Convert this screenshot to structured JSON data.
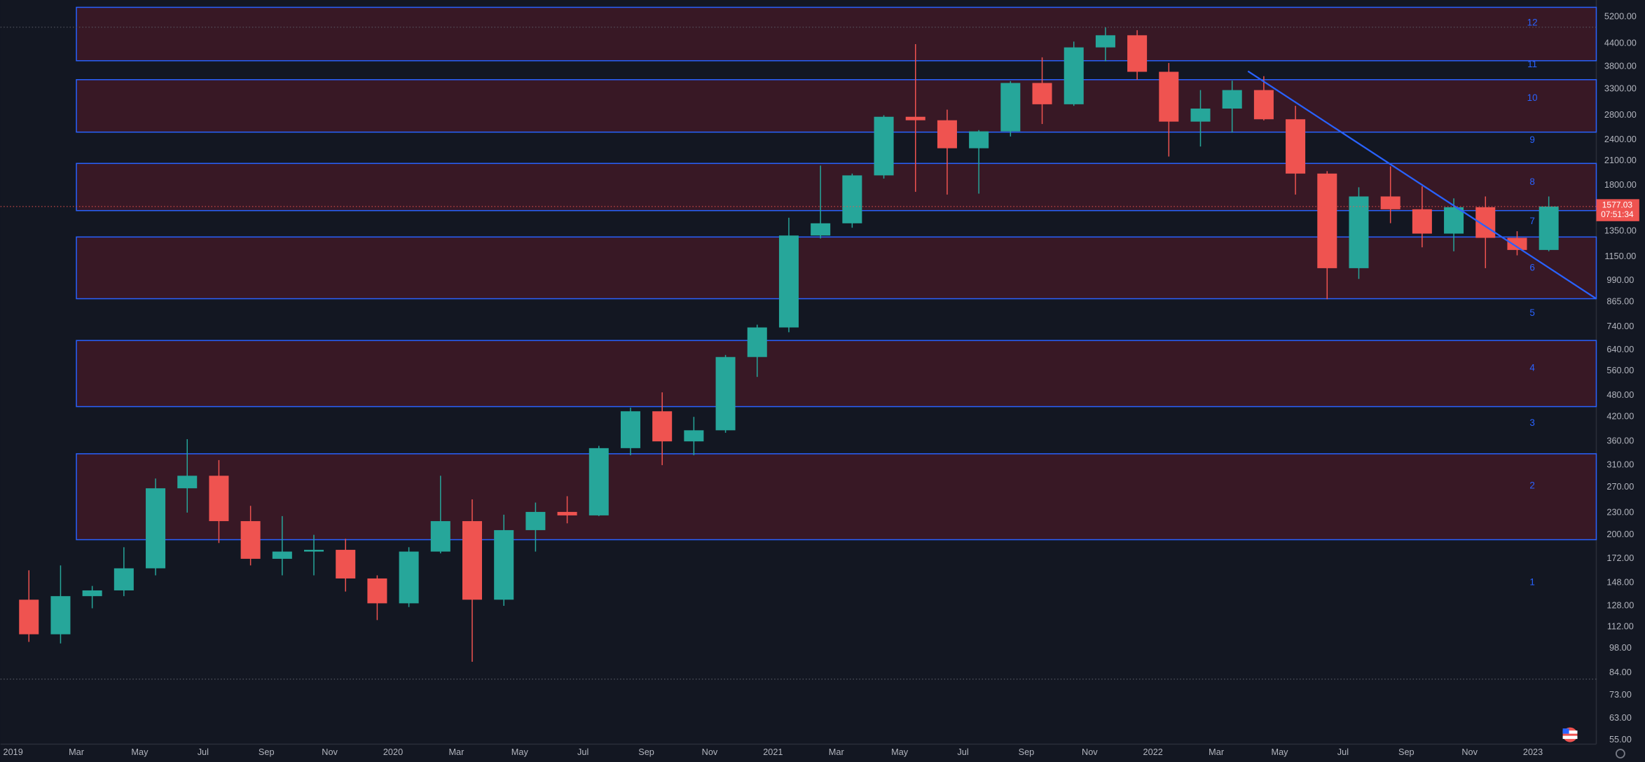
{
  "chart_data": {
    "type": "candlestick",
    "log_scale": true,
    "grid": true,
    "up_color": "#26a69a",
    "down_color": "#ef5350",
    "zone_color": "#2962ff",
    "ylim": [
      53.6,
      5780
    ],
    "yticks": [
      {
        "value": 5200,
        "label": "5200.00"
      },
      {
        "value": 4400,
        "label": "4400.00"
      },
      {
        "value": 3800,
        "label": "3800.00"
      },
      {
        "value": 3300,
        "label": "3300.00"
      },
      {
        "value": 2800,
        "label": "2800.00"
      },
      {
        "value": 2400,
        "label": "2400.00"
      },
      {
        "value": 2100,
        "label": "2100.00"
      },
      {
        "value": 1800,
        "label": "1800.00"
      },
      {
        "value": 1350,
        "label": "1350.00"
      },
      {
        "value": 1150,
        "label": "1150.00"
      },
      {
        "value": 990,
        "label": "990.00"
      },
      {
        "value": 865,
        "label": "865.00"
      },
      {
        "value": 740,
        "label": "740.00"
      },
      {
        "value": 640,
        "label": "640.00"
      },
      {
        "value": 560,
        "label": "560.00"
      },
      {
        "value": 480,
        "label": "480.00"
      },
      {
        "value": 420,
        "label": "420.00"
      },
      {
        "value": 360,
        "label": "360.00"
      },
      {
        "value": 310,
        "label": "310.00"
      },
      {
        "value": 270,
        "label": "270.00"
      },
      {
        "value": 230,
        "label": "230.00"
      },
      {
        "value": 200,
        "label": "200.00"
      },
      {
        "value": 172,
        "label": "172.00"
      },
      {
        "value": 148,
        "label": "148.00"
      },
      {
        "value": 128,
        "label": "128.00"
      },
      {
        "value": 112,
        "label": "112.00"
      },
      {
        "value": 98,
        "label": "98.00"
      },
      {
        "value": 84,
        "label": "84.00"
      },
      {
        "value": 73,
        "label": "73.00"
      },
      {
        "value": 63,
        "label": "63.00"
      },
      {
        "value": 55,
        "label": "55.00"
      }
    ],
    "xlim": [
      "2019-01",
      "2023-03"
    ],
    "xticks": [
      {
        "value": "2019-01",
        "label": "2019"
      },
      {
        "value": "2019-03",
        "label": "Mar"
      },
      {
        "value": "2019-05",
        "label": "May"
      },
      {
        "value": "2019-07",
        "label": "Jul"
      },
      {
        "value": "2019-09",
        "label": "Sep"
      },
      {
        "value": "2019-11",
        "label": "Nov"
      },
      {
        "value": "2020-01",
        "label": "2020"
      },
      {
        "value": "2020-03",
        "label": "Mar"
      },
      {
        "value": "2020-05",
        "label": "May"
      },
      {
        "value": "2020-07",
        "label": "Jul"
      },
      {
        "value": "2020-09",
        "label": "Sep"
      },
      {
        "value": "2020-11",
        "label": "Nov"
      },
      {
        "value": "2021-01",
        "label": "2021"
      },
      {
        "value": "2021-03",
        "label": "Mar"
      },
      {
        "value": "2021-05",
        "label": "May"
      },
      {
        "value": "2021-07",
        "label": "Jul"
      },
      {
        "value": "2021-09",
        "label": "Sep"
      },
      {
        "value": "2021-11",
        "label": "Nov"
      },
      {
        "value": "2022-01",
        "label": "2022"
      },
      {
        "value": "2022-03",
        "label": "Mar"
      },
      {
        "value": "2022-05",
        "label": "May"
      },
      {
        "value": "2022-07",
        "label": "Jul"
      },
      {
        "value": "2022-09",
        "label": "Sep"
      },
      {
        "value": "2022-11",
        "label": "Nov"
      },
      {
        "value": "2023-01",
        "label": "2023"
      }
    ],
    "candles": {
      "x": [
        "2019-01",
        "2019-02",
        "2019-03",
        "2019-04",
        "2019-05",
        "2019-06",
        "2019-07",
        "2019-08",
        "2019-09",
        "2019-10",
        "2019-11",
        "2019-12",
        "2020-01",
        "2020-02",
        "2020-03",
        "2020-04",
        "2020-05",
        "2020-06",
        "2020-07",
        "2020-08",
        "2020-09",
        "2020-10",
        "2020-11",
        "2020-12",
        "2021-01",
        "2021-02",
        "2021-03",
        "2021-04",
        "2021-05",
        "2021-06",
        "2021-07",
        "2021-08",
        "2021-09",
        "2021-10",
        "2021-11",
        "2021-12",
        "2022-01",
        "2022-02",
        "2022-03",
        "2022-04",
        "2022-05",
        "2022-06",
        "2022-07",
        "2022-08",
        "2022-09",
        "2022-10",
        "2022-11",
        "2022-12",
        "2023-01"
      ],
      "open": [
        133,
        107,
        136,
        141,
        162,
        268,
        290,
        218,
        172,
        180,
        182,
        152,
        130,
        180,
        218,
        133,
        206,
        231,
        226,
        345,
        435,
        360,
        386,
        612,
        737,
        1314,
        1419,
        1918,
        2773,
        2713,
        2275,
        2530,
        3430,
        3000,
        4290,
        4630,
        3680,
        2690,
        2920,
        3280,
        2730,
        1940,
        1070,
        1680,
        1550,
        1330,
        1570,
        1295,
        1200
      ],
      "high": [
        160,
        165,
        145,
        185,
        285,
        365,
        320,
        240,
        225,
        200,
        195,
        155,
        185,
        290,
        250,
        227,
        245,
        255,
        350,
        445,
        490,
        420,
        620,
        750,
        1470,
        2040,
        1940,
        2800,
        4380,
        2900,
        2550,
        3470,
        4030,
        4450,
        4870,
        4780,
        3890,
        3280,
        3480,
        3580,
        2970,
        1970,
        1780,
        2030,
        1790,
        1660,
        1680,
        1350,
        1680
      ],
      "low": [
        102,
        101,
        126,
        136,
        155,
        230,
        190,
        165,
        155,
        155,
        140,
        117,
        127,
        178,
        90,
        128,
        180,
        215,
        225,
        330,
        310,
        330,
        380,
        540,
        715,
        1290,
        1380,
        1880,
        1730,
        1700,
        1710,
        2450,
        2650,
        2970,
        3930,
        3500,
        2160,
        2300,
        2510,
        2710,
        1700,
        880,
        1000,
        1420,
        1220,
        1190,
        1070,
        1160,
        1190
      ],
      "close": [
        107,
        136,
        141,
        162,
        268,
        290,
        218,
        172,
        180,
        182,
        152,
        130,
        180,
        218,
        133,
        206,
        231,
        226,
        345,
        435,
        360,
        386,
        612,
        737,
        1314,
        1419,
        1918,
        2773,
        2713,
        2275,
        2530,
        3430,
        3000,
        4290,
        4630,
        3680,
        2690,
        2920,
        3280,
        2730,
        1940,
        1070,
        1680,
        1550,
        1330,
        1570,
        1295,
        1200,
        1577.03
      ]
    },
    "zones": [
      {
        "from": "2019-03",
        "top": 5520,
        "bottom": 3945
      },
      {
        "from": "2019-03",
        "top": 3502,
        "bottom": 2518
      },
      {
        "from": "2019-03",
        "top": 2068,
        "bottom": 1537
      },
      {
        "from": "2019-03",
        "top": 1302,
        "bottom": 883
      },
      {
        "from": "2019-03",
        "top": 679,
        "bottom": 448
      },
      {
        "from": "2019-03",
        "top": 333,
        "bottom": 194
      }
    ],
    "levels": [
      {
        "label": "12",
        "value": 5000
      },
      {
        "label": "11",
        "value": 3850
      },
      {
        "label": "10",
        "value": 3110
      },
      {
        "label": "9",
        "value": 2390
      },
      {
        "label": "8",
        "value": 1835
      },
      {
        "label": "7",
        "value": 1435
      },
      {
        "label": "6",
        "value": 1070
      },
      {
        "label": "5",
        "value": 805
      },
      {
        "label": "4",
        "value": 570
      },
      {
        "label": "3",
        "value": 403
      },
      {
        "label": "2",
        "value": 272
      },
      {
        "label": "1",
        "value": 148
      }
    ],
    "trendline": {
      "from": {
        "x": "2022-04",
        "y": 3693
      },
      "to": {
        "x": "2023-03",
        "y": 883
      }
    },
    "horizontal_lines": [
      4870,
      80.7
    ],
    "last_price": {
      "value": 1577.03,
      "label": "1577.03"
    },
    "countdown": "07:51:34"
  }
}
